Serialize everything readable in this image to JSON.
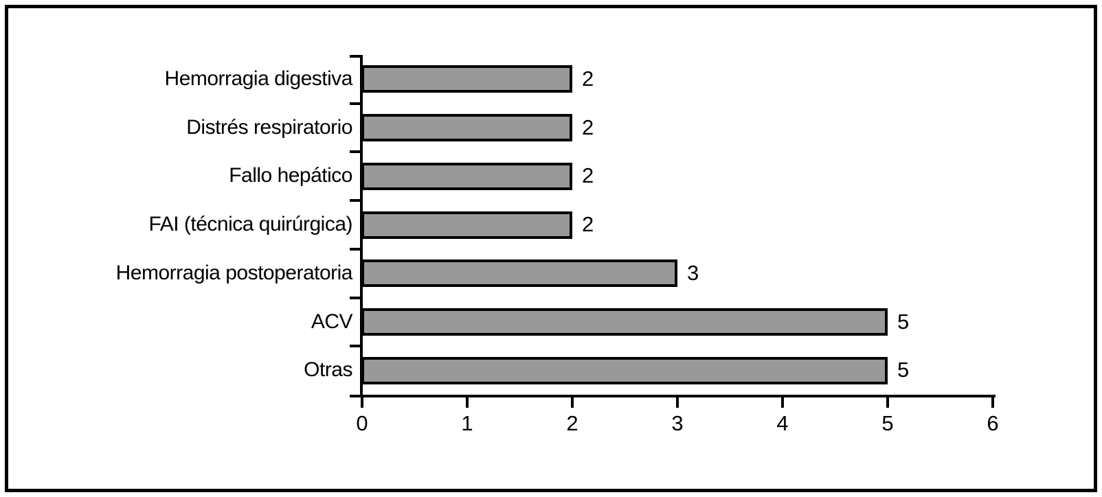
{
  "chart_data": {
    "type": "bar",
    "orientation": "horizontal",
    "title": "",
    "xlabel": "",
    "ylabel": "",
    "categories": [
      "Hemorragia digestiva",
      "Distrés respiratorio",
      "Fallo hepático",
      "FAI (técnica quirúrgica)",
      "Hemorragia postoperatoria",
      "ACV",
      "Otras"
    ],
    "values": [
      2,
      2,
      2,
      2,
      3,
      5,
      5
    ],
    "value_labels": [
      "2",
      "2",
      "2",
      "2",
      "3",
      "5",
      "5"
    ],
    "xlim": [
      0,
      6
    ],
    "x_ticks": [
      0,
      1,
      2,
      3,
      4,
      5,
      6
    ],
    "grid": false,
    "legend": false,
    "bar_fill_color": "#999999",
    "bar_border_color": "#000000",
    "axis_color": "#000000",
    "background_color": "#ffffff"
  }
}
